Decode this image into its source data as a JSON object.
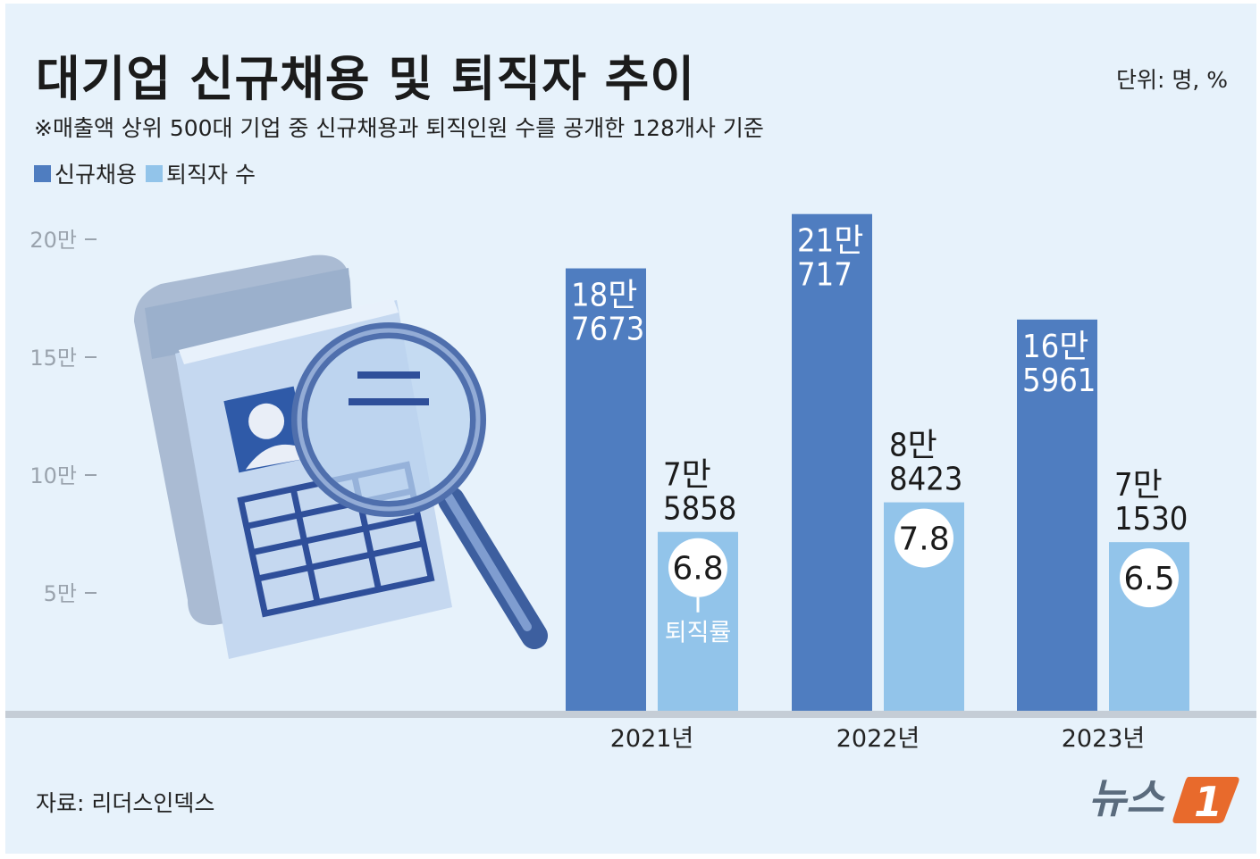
{
  "title": "대기업 신규채용 및 퇴직자 추이",
  "unit": "단위: 명, %",
  "note": "※매출액 상위 500대 기업 중 신규채용과 퇴직인원 수를 공개한 128개사 기준",
  "source": "자료: 리더스인덱스",
  "logo_text": "뉴스1",
  "colors": {
    "new_hires": "#4f7dc0",
    "retirees": "#92c4ea",
    "background": "#e7f2fb"
  },
  "chart_data": {
    "type": "bar",
    "categories": [
      "2021년",
      "2022년",
      "2023년"
    ],
    "series": [
      {
        "name": "신규채용",
        "values": [
          187673,
          210717,
          165961
        ],
        "value_labels": [
          [
            "18만",
            "7673"
          ],
          [
            "21만",
            "717"
          ],
          [
            "16만",
            "5961"
          ]
        ]
      },
      {
        "name": "퇴직자 수",
        "values": [
          75858,
          88423,
          71530
        ],
        "value_labels": [
          [
            "7만",
            "5858"
          ],
          [
            "8만",
            "8423"
          ],
          [
            "7만",
            "1530"
          ]
        ],
        "rate_values": [
          6.8,
          7.8,
          6.5
        ],
        "rate_labels": [
          "6.8",
          "7.8",
          "6.5"
        ]
      }
    ],
    "rate_annotation": "퇴직률",
    "y_ticks": [
      {
        "value": 50000,
        "label": "5만"
      },
      {
        "value": 100000,
        "label": "10만"
      },
      {
        "value": 150000,
        "label": "15만"
      },
      {
        "value": 200000,
        "label": "20만"
      }
    ],
    "ylim": [
      0,
      200000
    ],
    "legend": "top-left",
    "grid": false
  }
}
